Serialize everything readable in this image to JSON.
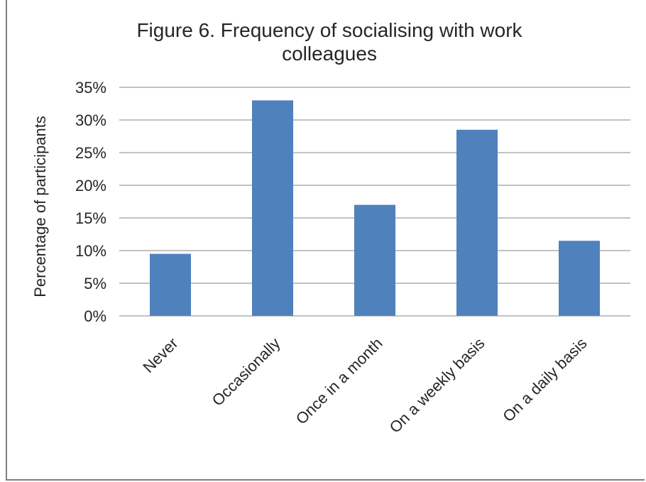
{
  "chart_data": {
    "type": "bar",
    "title_line1": "Figure 6.  Frequency of socialising with work",
    "title_line2": "colleagues",
    "ylabel": "Percentage of participants",
    "xlabel": "",
    "categories": [
      "Never",
      "Occasionally",
      "Once in a month",
      "On a weekly basis",
      "On a daily basis"
    ],
    "values": [
      9.5,
      33,
      17,
      28.5,
      11.5
    ],
    "ylim": [
      0,
      35
    ],
    "yticks": [
      0,
      5,
      10,
      15,
      20,
      25,
      30,
      35
    ],
    "ytick_labels": [
      "0%",
      "5%",
      "10%",
      "15%",
      "20%",
      "25%",
      "30%",
      "35%"
    ],
    "grid": true,
    "bar_color": "#4f81bd",
    "grid_color": "#868686"
  }
}
